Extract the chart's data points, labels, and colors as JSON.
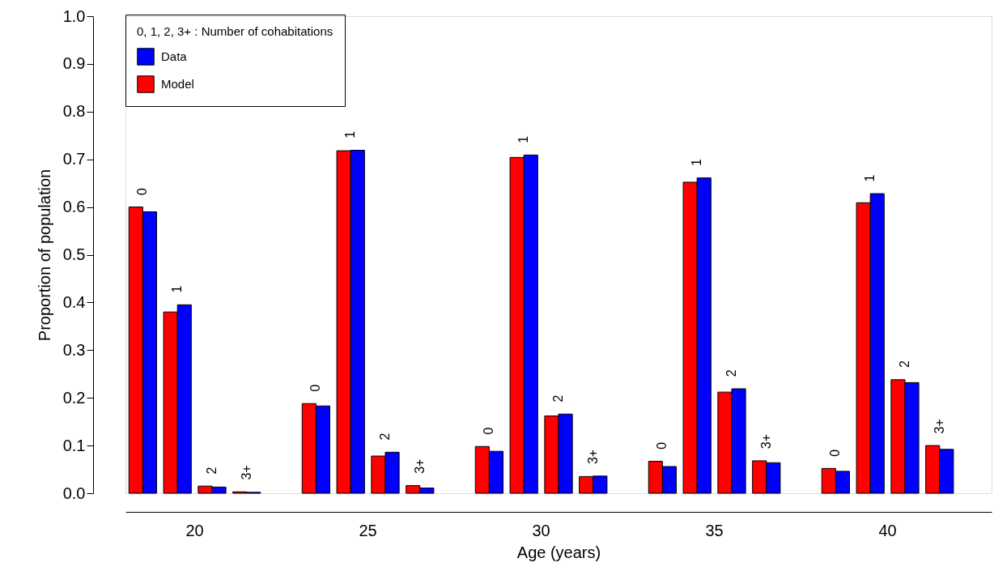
{
  "chart_data": {
    "type": "bar",
    "xlabel": "Age (years)",
    "ylabel": "Proportion of population",
    "legend_title": "0, 1, 2, 3+ : Number of cohabitations",
    "categories": [
      "0",
      "1",
      "2",
      "3+",
      null,
      "0",
      "1",
      "2",
      "3+",
      null,
      "0",
      "1",
      "2",
      "3+",
      null,
      "0",
      "1",
      "2",
      "3+",
      null,
      "0",
      "1",
      "2",
      "3+",
      null
    ],
    "series": [
      {
        "name": "Model",
        "color": "#ff0000",
        "values": [
          0.6,
          0.38,
          0.015,
          0.003,
          null,
          0.188,
          0.718,
          0.078,
          0.016,
          null,
          0.098,
          0.704,
          0.162,
          0.035,
          null,
          0.067,
          0.652,
          0.212,
          0.068,
          null,
          0.052,
          0.609,
          0.238,
          0.1,
          null
        ]
      },
      {
        "name": "Data",
        "color": "#0000ff",
        "values": [
          0.59,
          0.395,
          0.013,
          0.002,
          null,
          0.183,
          0.719,
          0.086,
          0.011,
          null,
          0.088,
          0.709,
          0.166,
          0.036,
          null,
          0.056,
          0.661,
          0.219,
          0.064,
          null,
          0.046,
          0.628,
          0.232,
          0.092,
          null
        ]
      }
    ],
    "annotations": [
      "20",
      "25",
      "30",
      "35",
      "40"
    ],
    "ylim": [
      0,
      1.0
    ],
    "yticks": [
      {
        "value": 0,
        "label": "0.0"
      },
      0.1,
      0.2,
      0.3,
      0.4,
      0.5,
      0.6,
      0.7,
      0.8,
      0.9,
      {
        "value": 1,
        "label": "1.0"
      }
    ],
    "grid": false,
    "legend": "top left"
  }
}
